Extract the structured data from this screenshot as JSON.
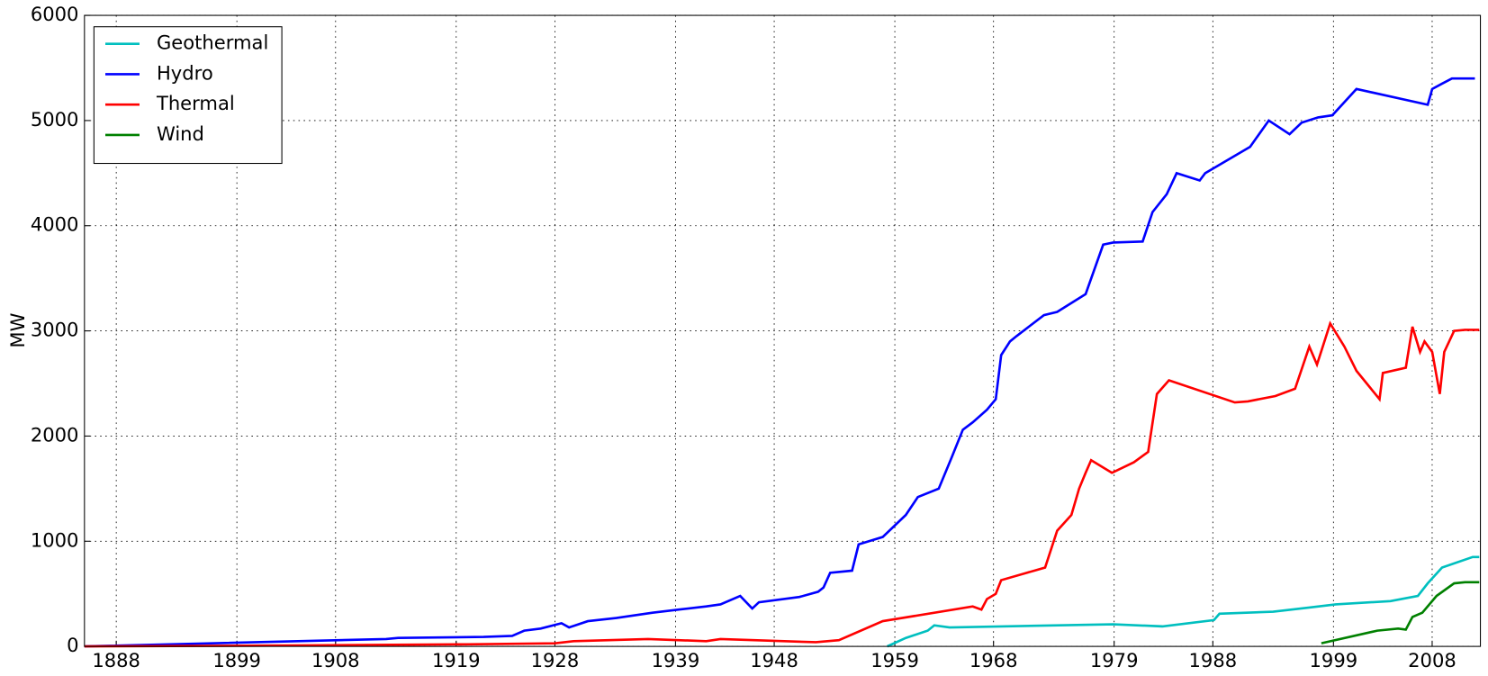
{
  "chart_data": {
    "type": "line",
    "ylabel": "MW",
    "legend": "upper left",
    "grid": true,
    "xlim": [
      1885.1,
      2012.4
    ],
    "ylim": [
      0,
      6000
    ],
    "xticks": [
      1888,
      1899,
      1908,
      1919,
      1928,
      1939,
      1948,
      1959,
      1968,
      1979,
      1988,
      1999,
      2008
    ],
    "yticks": [
      0,
      1000,
      2000,
      3000,
      4000,
      5000,
      6000
    ],
    "series": [
      {
        "name": "Geothermal",
        "color": "#00bfbf",
        "x": [
          1958.3,
          1960,
          1962,
          1962.6,
          1964,
          1978.9,
          1983.4,
          1988.1,
          1988.6,
          1993.5,
          1996.8,
          1999.2,
          2004.2,
          2006.7,
          2007.6,
          2008.9,
          2011.7,
          2012.3
        ],
        "values": [
          0,
          80,
          150,
          200,
          180,
          210,
          190,
          250,
          310,
          330,
          370,
          400,
          430,
          480,
          600,
          750,
          850,
          850
        ]
      },
      {
        "name": "Hydro",
        "color": "#0000ff",
        "x": [
          1885.1,
          1912.6,
          1913.7,
          1921.5,
          1924.1,
          1925.2,
          1926.7,
          1928.6,
          1929.3,
          1931.0,
          1933.6,
          1936.9,
          1939.3,
          1941.8,
          1943.1,
          1944.9,
          1946.0,
          1946.6,
          1950.3,
          1952.0,
          1952.5,
          1953.1,
          1955.1,
          1955.7,
          1957.9,
          1960.0,
          1961.1,
          1963.0,
          1964.2,
          1965.2,
          1966.1,
          1967.4,
          1968.2,
          1968.7,
          1969.5,
          1970.1,
          1972.6,
          1973.8,
          1976.4,
          1978.0,
          1978.9,
          1981.6,
          1982.5,
          1983.8,
          1984.7,
          1986.8,
          1987.3,
          1991.4,
          1993.1,
          1995.0,
          1996.1,
          1997.6,
          1998.9,
          2001.1,
          2007.6,
          2008.0,
          2008.9,
          2009.8,
          2011.9
        ],
        "values": [
          0,
          70,
          80,
          90,
          100,
          150,
          170,
          220,
          180,
          240,
          270,
          320,
          350,
          380,
          400,
          480,
          360,
          420,
          470,
          520,
          560,
          700,
          720,
          970,
          1040,
          1250,
          1420,
          1500,
          1800,
          2060,
          2130,
          2250,
          2350,
          2770,
          2900,
          2950,
          3150,
          3180,
          3350,
          3820,
          3840,
          3850,
          4130,
          4300,
          4500,
          4430,
          4500,
          4750,
          5000,
          4870,
          4980,
          5030,
          5050,
          5300,
          5150,
          5300,
          5350,
          5400,
          5400
        ]
      },
      {
        "name": "Thermal",
        "color": "#ff0000",
        "x": [
          1885.1,
          1906,
          1920,
          1928,
          1929.7,
          1936.5,
          1941.8,
          1943.1,
          1951.8,
          1953.9,
          1957.9,
          1966.1,
          1966.9,
          1967.4,
          1968.2,
          1968.7,
          1972.7,
          1973.8,
          1975.1,
          1975.8,
          1976.4,
          1976.9,
          1978.8,
          1980.8,
          1982.1,
          1982.9,
          1984.0,
          1990.0,
          1991.2,
          1993.7,
          1995.5,
          1996.8,
          1997.5,
          1998.7,
          2000.0,
          2001.1,
          2003.2,
          2003.5,
          2005.6,
          2006.2,
          2006.9,
          2007.3,
          2008.0,
          2008.7,
          2009.1,
          2010.0,
          2011.0,
          2012.3
        ],
        "values": [
          0,
          10,
          20,
          30,
          50,
          70,
          50,
          70,
          40,
          60,
          240,
          380,
          350,
          450,
          500,
          630,
          750,
          1100,
          1250,
          1500,
          1650,
          1770,
          1650,
          1750,
          1850,
          2400,
          2530,
          2320,
          2330,
          2380,
          2450,
          2850,
          2680,
          3070,
          2850,
          2620,
          2350,
          2600,
          2650,
          3040,
          2800,
          2900,
          2800,
          2400,
          2800,
          3000,
          3010,
          3010
        ]
      },
      {
        "name": "Wind",
        "color": "#008000",
        "x": [
          1997.9,
          2003.0,
          2004.9,
          2005.6,
          2006.2,
          2007.1,
          2008.4,
          2010.0,
          2011.0,
          2012.3
        ],
        "values": [
          30,
          150,
          170,
          160,
          280,
          320,
          480,
          600,
          610,
          610
        ]
      }
    ]
  }
}
